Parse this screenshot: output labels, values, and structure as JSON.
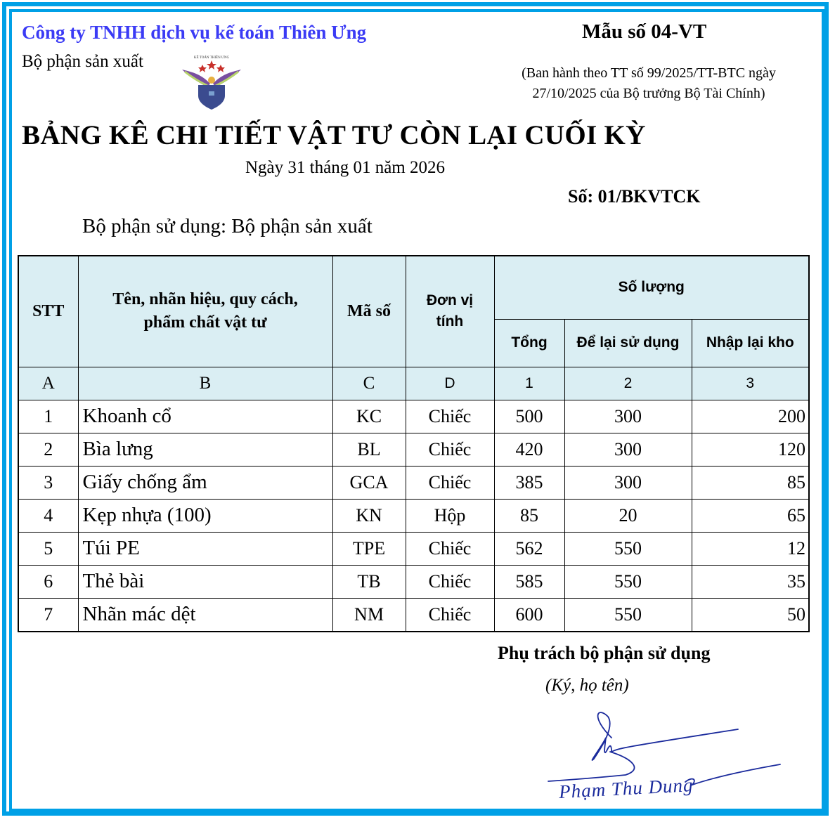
{
  "header": {
    "company": "Công ty TNHH dịch vụ kế toán Thiên Ưng",
    "department": "Bộ phận sản xuất",
    "logo_text": "KẾ TOÁN THIÊN ƯNG",
    "form_number": "Mẫu số 04-VT",
    "issued_by": "(Ban hành theo TT số 99/2025/TT-BTC ngày 27/10/2025 của Bộ trưởng Bộ Tài Chính)"
  },
  "document": {
    "title": "BẢNG KÊ CHI TIẾT VẬT TƯ CÒN LẠI CUỐI KỲ",
    "date": "Ngày 31 tháng 01 năm 2026",
    "number": "Số: 01/BKVTCK",
    "using_department": "Bộ phận sử dụng: Bộ phận sản xuất"
  },
  "table": {
    "headers": {
      "stt": "STT",
      "name": "Tên, nhãn hiệu, quy cách, phẩm chất vật tư",
      "code": "Mã số",
      "unit": "Đơn vị tính",
      "quantity": "Số lượng",
      "total": "Tổng",
      "kept": "Để lại sử dụng",
      "returned": "Nhập lại kho"
    },
    "letters": [
      "A",
      "B",
      "C",
      "D",
      "1",
      "2",
      "3"
    ],
    "rows": [
      {
        "stt": "1",
        "name": "Khoanh cổ",
        "code": "KC",
        "unit": "Chiếc",
        "total": "500",
        "kept": "300",
        "returned": "200"
      },
      {
        "stt": "2",
        "name": "Bìa lưng",
        "code": "BL",
        "unit": "Chiếc",
        "total": "420",
        "kept": "300",
        "returned": "120"
      },
      {
        "stt": "3",
        "name": "Giấy chống ẩm",
        "code": "GCA",
        "unit": "Chiếc",
        "total": "385",
        "kept": "300",
        "returned": "85"
      },
      {
        "stt": "4",
        "name": "Kẹp nhựa (100)",
        "code": "KN",
        "unit": "Hộp",
        "total": "85",
        "kept": "20",
        "returned": "65"
      },
      {
        "stt": "5",
        "name": "Túi PE",
        "code": "TPE",
        "unit": "Chiếc",
        "total": "562",
        "kept": "550",
        "returned": "12"
      },
      {
        "stt": "6",
        "name": "Thẻ bài",
        "code": "TB",
        "unit": "Chiếc",
        "total": "585",
        "kept": "550",
        "returned": "35"
      },
      {
        "stt": "7",
        "name": "Nhãn mác dệt",
        "code": "NM",
        "unit": "Chiếc",
        "total": "600",
        "kept": "550",
        "returned": "50"
      }
    ]
  },
  "signature": {
    "title": "Phụ trách bộ phận sử dụng",
    "note": "(Ký, họ tên)",
    "handwritten": "Phạm Thu Dung"
  },
  "colors": {
    "frame": "#00a0e6",
    "company": "#3b3bf5",
    "header_bg": "#daeef3",
    "ink": "#1a2a9c"
  }
}
